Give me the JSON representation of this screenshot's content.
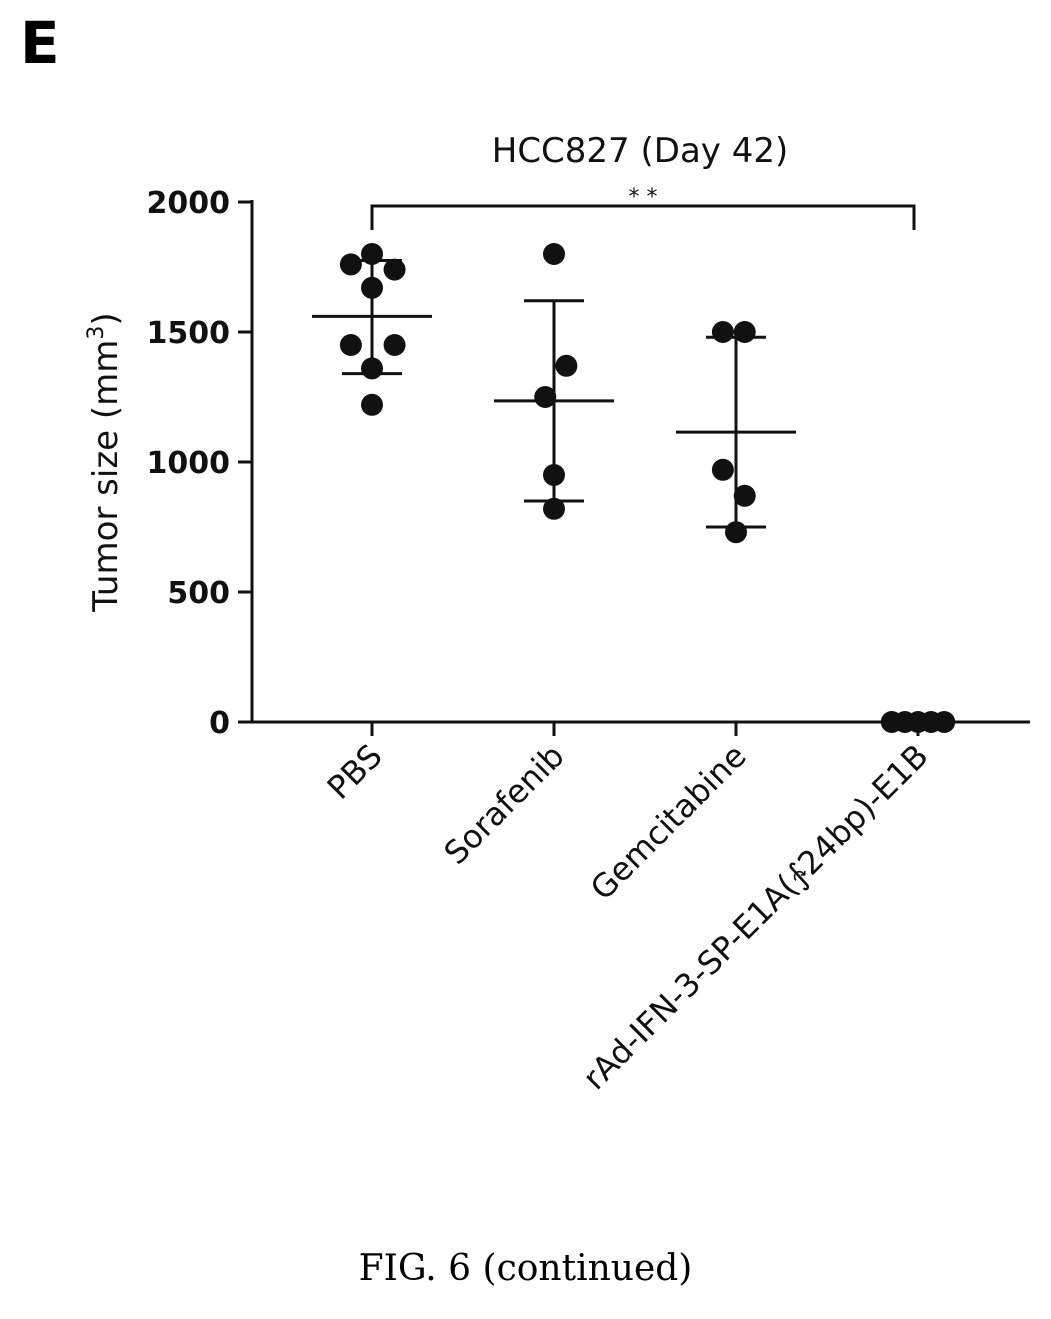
{
  "panel_label": "E",
  "caption": "FIG. 6 (continued)",
  "chart_data": {
    "type": "scatter",
    "title": "HCC827 (Day 42)",
    "ylabel_main": "Tumor size (mm",
    "ylabel_sup": "3",
    "ylabel_close": ")",
    "ylim": [
      0,
      2000
    ],
    "yticks": [
      0,
      500,
      1000,
      1500,
      2000
    ],
    "ytick_labels": [
      "0",
      "500",
      "1000",
      "1500",
      "2000"
    ],
    "categories": [
      "PBS",
      "Sorafenib",
      "Gemcitabine",
      "rAd-IFN-3-SP-E1A(∱24bp)-E1B"
    ],
    "groups": [
      {
        "category": "PBS",
        "points": [
          {
            "offset": -0.29,
            "value": 1760
          },
          {
            "offset": 0.0,
            "value": 1800
          },
          {
            "offset": 0.31,
            "value": 1740
          },
          {
            "offset": 0.0,
            "value": 1670
          },
          {
            "offset": -0.29,
            "value": 1450
          },
          {
            "offset": 0.31,
            "value": 1450
          },
          {
            "offset": 0.0,
            "value": 1360
          },
          {
            "offset": 0.0,
            "value": 1220
          }
        ],
        "mean": 1560,
        "sd_low": 1340,
        "sd_high": 1775
      },
      {
        "category": "Sorafenib",
        "points": [
          {
            "offset": 0.0,
            "value": 1800
          },
          {
            "offset": 0.17,
            "value": 1370
          },
          {
            "offset": -0.12,
            "value": 1250
          },
          {
            "offset": 0.0,
            "value": 950
          },
          {
            "offset": 0.0,
            "value": 820
          }
        ],
        "mean": 1235,
        "sd_low": 850,
        "sd_high": 1620
      },
      {
        "category": "Gemcitabine",
        "points": [
          {
            "offset": -0.18,
            "value": 1500
          },
          {
            "offset": 0.12,
            "value": 1500
          },
          {
            "offset": -0.18,
            "value": 970
          },
          {
            "offset": 0.12,
            "value": 870
          },
          {
            "offset": 0.0,
            "value": 730
          }
        ],
        "mean": 1115,
        "sd_low": 750,
        "sd_high": 1480
      },
      {
        "category": "rAd-IFN-3-SP-E1A(∱24bp)-E1B",
        "points": [
          {
            "offset": -0.36,
            "value": 0
          },
          {
            "offset": -0.18,
            "value": 0
          },
          {
            "offset": 0.0,
            "value": 0
          },
          {
            "offset": 0.18,
            "value": 0
          },
          {
            "offset": 0.36,
            "value": 0
          }
        ],
        "mean": null,
        "sd_low": null,
        "sd_high": null
      }
    ],
    "significance": {
      "from": "PBS",
      "to": "rAd-IFN-3-SP-E1A(∱24bp)-E1B",
      "label": "* *"
    },
    "marker_color": "#111111",
    "grid": false,
    "legend": "none"
  }
}
